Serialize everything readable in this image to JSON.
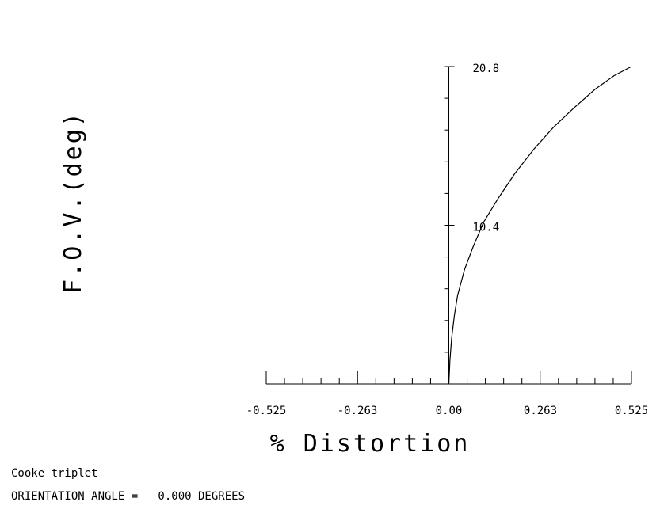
{
  "chart_data": {
    "type": "line",
    "title": "",
    "xlabel": "% Distortion",
    "ylabel": "F.O.V.(deg)",
    "xlim": [
      -0.525,
      0.525
    ],
    "ylim": [
      0,
      20.8
    ],
    "x_tick_labels": [
      "-0.525",
      "-0.263",
      "0.00",
      "0.263",
      "0.525"
    ],
    "x_tick_values": [
      -0.525,
      -0.263,
      0.0,
      0.263,
      0.525
    ],
    "y_tick_labels": [
      "10.4",
      "20.8"
    ],
    "y_tick_values": [
      10.4,
      20.8
    ],
    "grid": false,
    "series": [
      {
        "x": [
          0.0,
          0.003,
          0.008,
          0.016,
          0.025,
          0.045,
          0.07,
          0.1,
          0.14,
          0.19,
          0.245,
          0.3,
          0.36,
          0.42,
          0.475,
          0.525
        ],
        "y": [
          0.0,
          1.5,
          3.0,
          4.5,
          5.8,
          7.5,
          9.0,
          10.6,
          12.1,
          13.8,
          15.4,
          16.8,
          18.1,
          19.3,
          20.2,
          20.8
        ]
      }
    ],
    "line_color": "#000000"
  },
  "footer": {
    "title": "Cooke triplet",
    "orientation": "ORIENTATION ANGLE =   0.000 DEGREES"
  }
}
